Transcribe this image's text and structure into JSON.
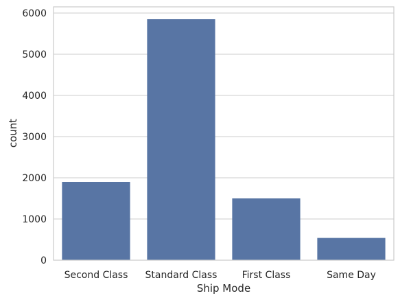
{
  "chart_data": {
    "type": "bar",
    "title": "",
    "xlabel": "Ship Mode",
    "ylabel": "count",
    "categories": [
      "Second Class",
      "Standard Class",
      "First Class",
      "Same Day"
    ],
    "values": [
      1900,
      5850,
      1500,
      540
    ],
    "ylim": [
      0,
      6150
    ],
    "yticks": [
      0,
      1000,
      2000,
      3000,
      4000,
      5000,
      6000
    ],
    "grid": "horizontal",
    "legend": "none",
    "colors": {
      "bar": "#5875a4",
      "grid": "#cccccc",
      "frame": "#cccccc",
      "text": "#262626",
      "background": "#ffffff"
    }
  }
}
